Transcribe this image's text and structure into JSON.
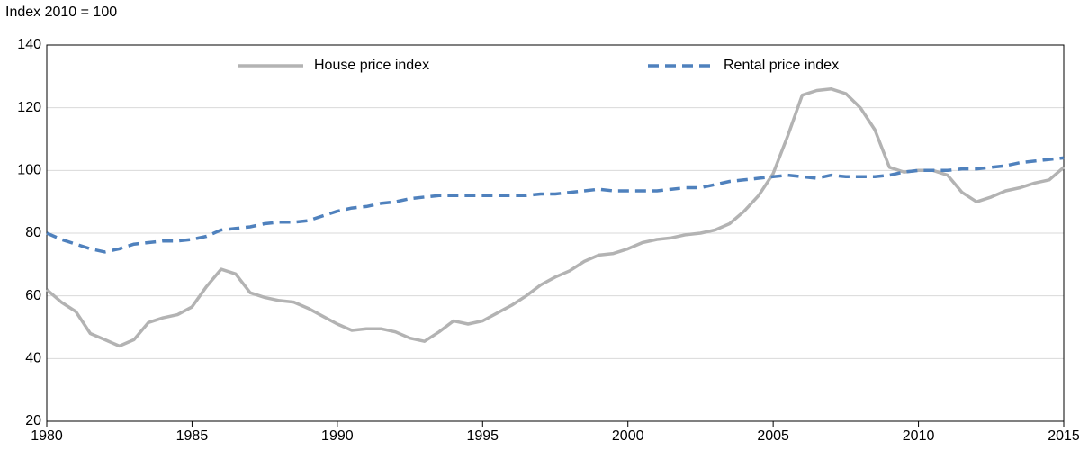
{
  "chart_data": {
    "type": "line",
    "y_axis_label": "Index 2010 = 100",
    "x": [
      1980,
      1980.5,
      1981,
      1981.5,
      1982,
      1982.5,
      1983,
      1983.5,
      1984,
      1984.5,
      1985,
      1985.5,
      1986,
      1986.5,
      1987,
      1987.5,
      1988,
      1988.5,
      1989,
      1989.5,
      1990,
      1990.5,
      1991,
      1991.5,
      1992,
      1992.5,
      1993,
      1993.5,
      1994,
      1994.5,
      1995,
      1995.5,
      1996,
      1996.5,
      1997,
      1997.5,
      1998,
      1998.5,
      1999,
      1999.5,
      2000,
      2000.5,
      2001,
      2001.5,
      2002,
      2002.5,
      2003,
      2003.5,
      2004,
      2004.5,
      2005,
      2005.5,
      2006,
      2006.5,
      2007,
      2007.5,
      2008,
      2008.5,
      2009,
      2009.5,
      2010,
      2010.5,
      2011,
      2011.5,
      2012,
      2012.5,
      2013,
      2013.5,
      2014,
      2014.5,
      2015
    ],
    "series": [
      {
        "name": "House price index",
        "color": "#b3b3b3",
        "dash": false,
        "values": [
          62,
          58,
          55,
          48,
          46,
          44,
          46,
          51.5,
          53,
          54,
          56.5,
          63,
          68.5,
          67,
          61,
          59.5,
          58.5,
          58,
          56,
          53.5,
          51,
          49,
          49.5,
          49.5,
          48.5,
          46.5,
          45.5,
          48.5,
          52,
          51,
          52,
          54.5,
          57,
          60,
          63.5,
          66,
          68,
          71,
          73,
          73.5,
          75,
          77,
          78,
          78.5,
          79.5,
          80,
          81,
          83,
          87,
          92,
          99,
          111,
          124,
          125.5,
          126,
          124.5,
          120,
          113,
          101,
          99.5,
          100,
          100,
          98.5,
          93,
          90,
          91.5,
          93.5,
          94.5,
          96,
          97,
          101
        ]
      },
      {
        "name": "Rental price index",
        "color": "#4f81bd",
        "dash": true,
        "values": [
          80,
          78,
          76.5,
          75,
          74,
          75,
          76.5,
          77,
          77.5,
          77.5,
          78,
          79,
          81,
          81.5,
          82,
          83,
          83.5,
          83.5,
          84,
          85.5,
          87,
          88,
          88.5,
          89.5,
          90,
          91,
          91.5,
          92,
          92,
          92,
          92,
          92,
          92,
          92,
          92.5,
          92.5,
          93,
          93.5,
          94,
          93.5,
          93.5,
          93.5,
          93.5,
          94,
          94.5,
          94.5,
          95.5,
          96.5,
          97,
          97.5,
          98,
          98.5,
          98,
          97.5,
          98.5,
          98,
          98,
          98,
          98.5,
          99.5,
          100,
          100,
          100,
          100.5,
          100.5,
          101,
          101.5,
          102.5,
          103,
          103.5,
          104
        ]
      }
    ],
    "xlim": [
      1980,
      2015
    ],
    "xticks": [
      1980,
      1985,
      1990,
      1995,
      2000,
      2005,
      2010,
      2015
    ],
    "ylim": [
      20,
      140
    ],
    "yticks": [
      20,
      40,
      60,
      80,
      100,
      120,
      140
    ],
    "grid": true,
    "legend": "top"
  }
}
